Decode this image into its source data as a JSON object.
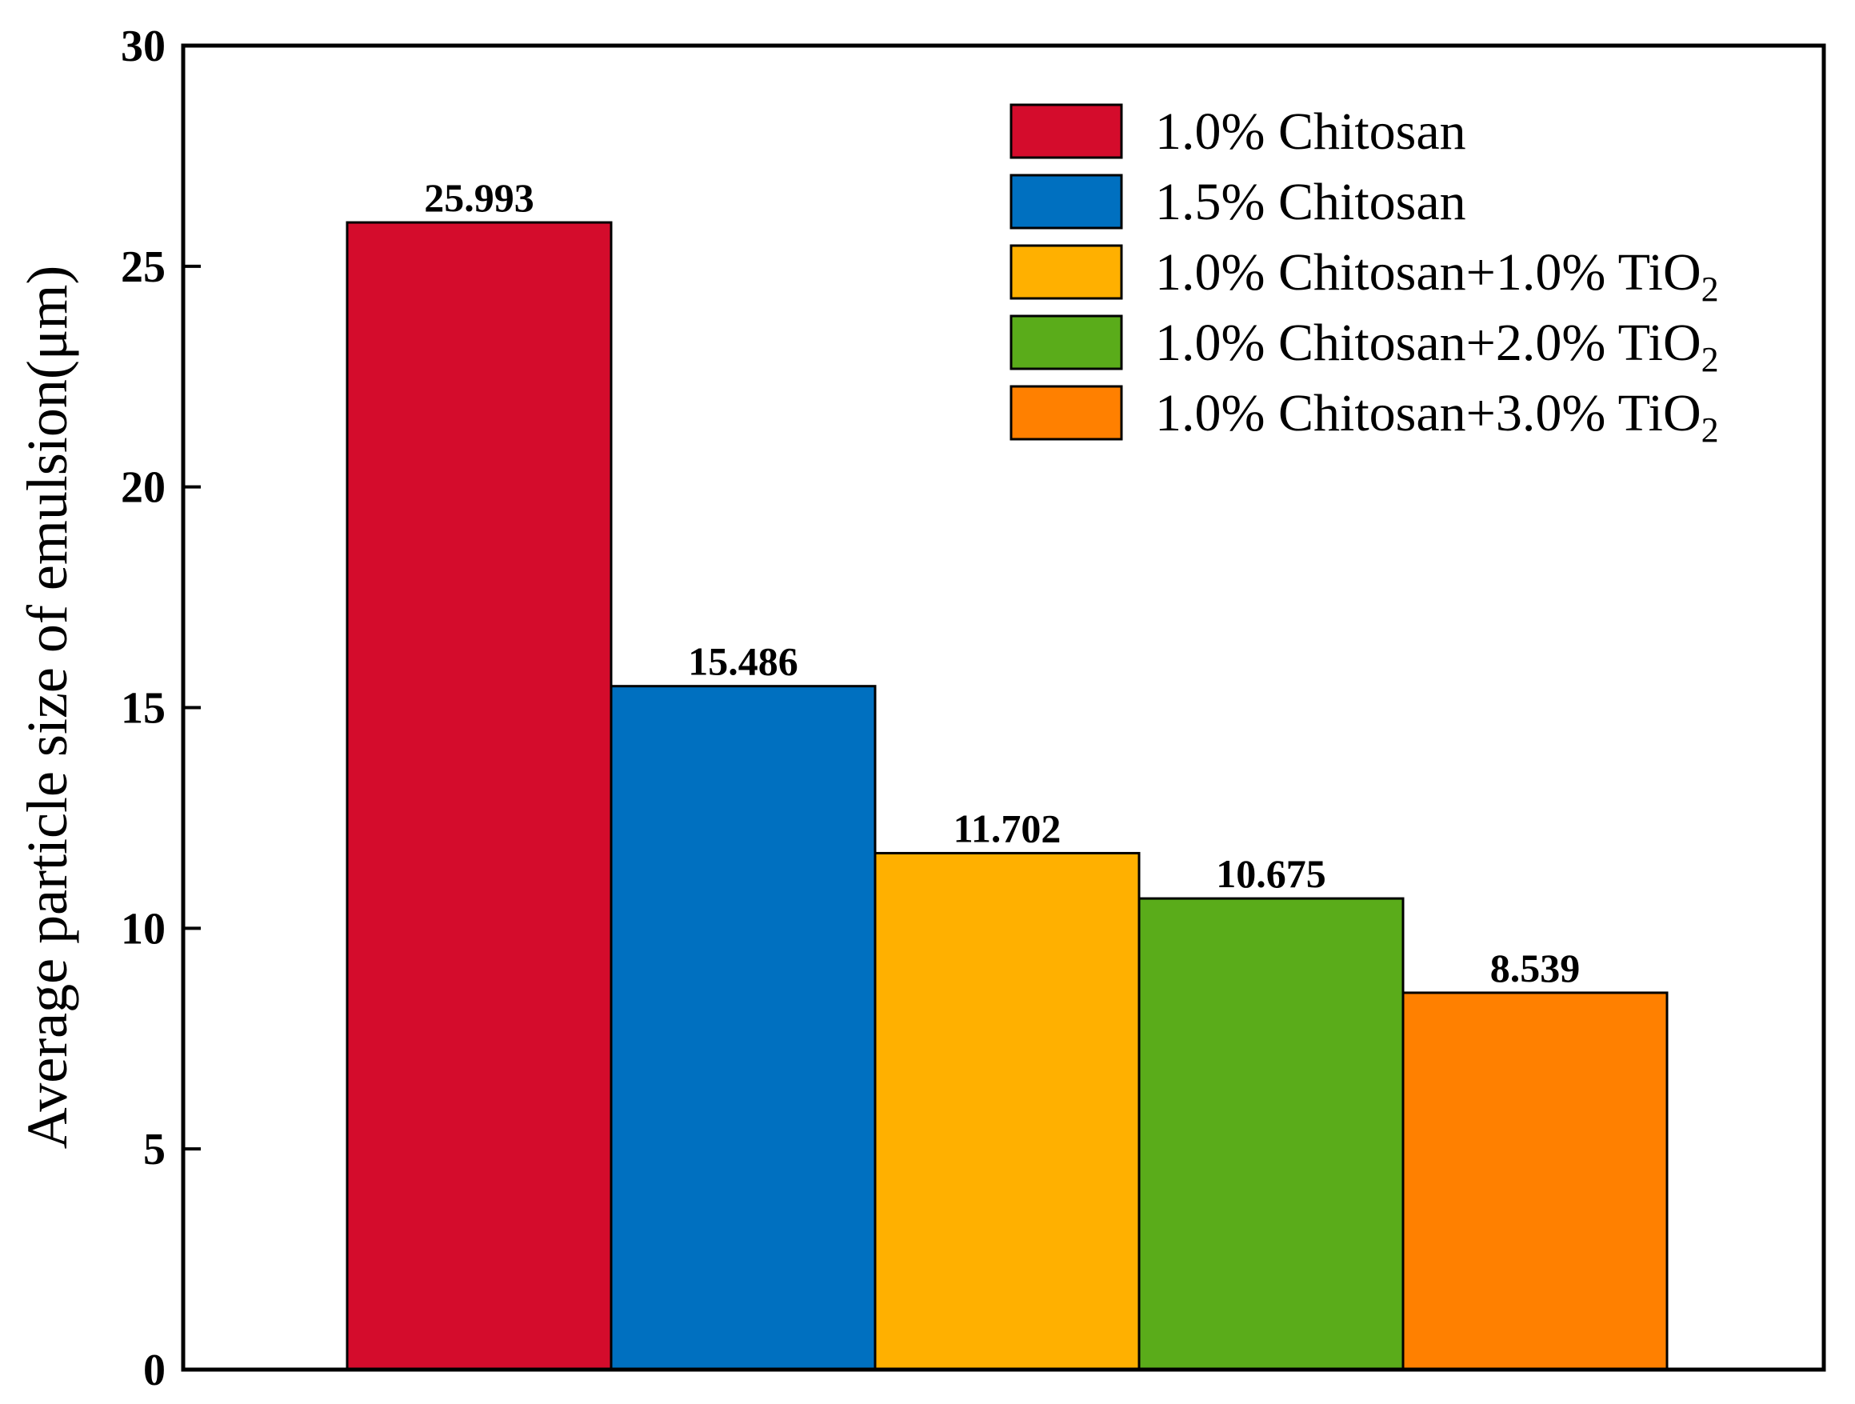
{
  "chart_data": {
    "type": "bar",
    "title": "",
    "xlabel": "",
    "ylabel": "Average particle size of emulsion(μm)",
    "ylim": [
      0,
      30
    ],
    "yticks": [
      0,
      5,
      10,
      15,
      20,
      25,
      30
    ],
    "grid": false,
    "legend_position": "top-right",
    "series": [
      {
        "name": "1.0% Chitosan",
        "value": 25.993,
        "label": "25.993",
        "color": "#d40c2c"
      },
      {
        "name": "1.5% Chitosan",
        "value": 15.486,
        "label": "15.486",
        "color": "#0070c0"
      },
      {
        "name": "1.0% Chitosan+1.0% TiO",
        "subscript": "2",
        "value": 11.702,
        "label": "11.702",
        "color": "#ffb000"
      },
      {
        "name": "1.0% Chitosan+2.0% TiO",
        "subscript": "2",
        "value": 10.675,
        "label": "10.675",
        "color": "#5aac1a"
      },
      {
        "name": "1.0% Chitosan+3.0% TiO",
        "subscript": "2",
        "value": 8.539,
        "label": "8.539",
        "color": "#ff8000"
      }
    ]
  }
}
